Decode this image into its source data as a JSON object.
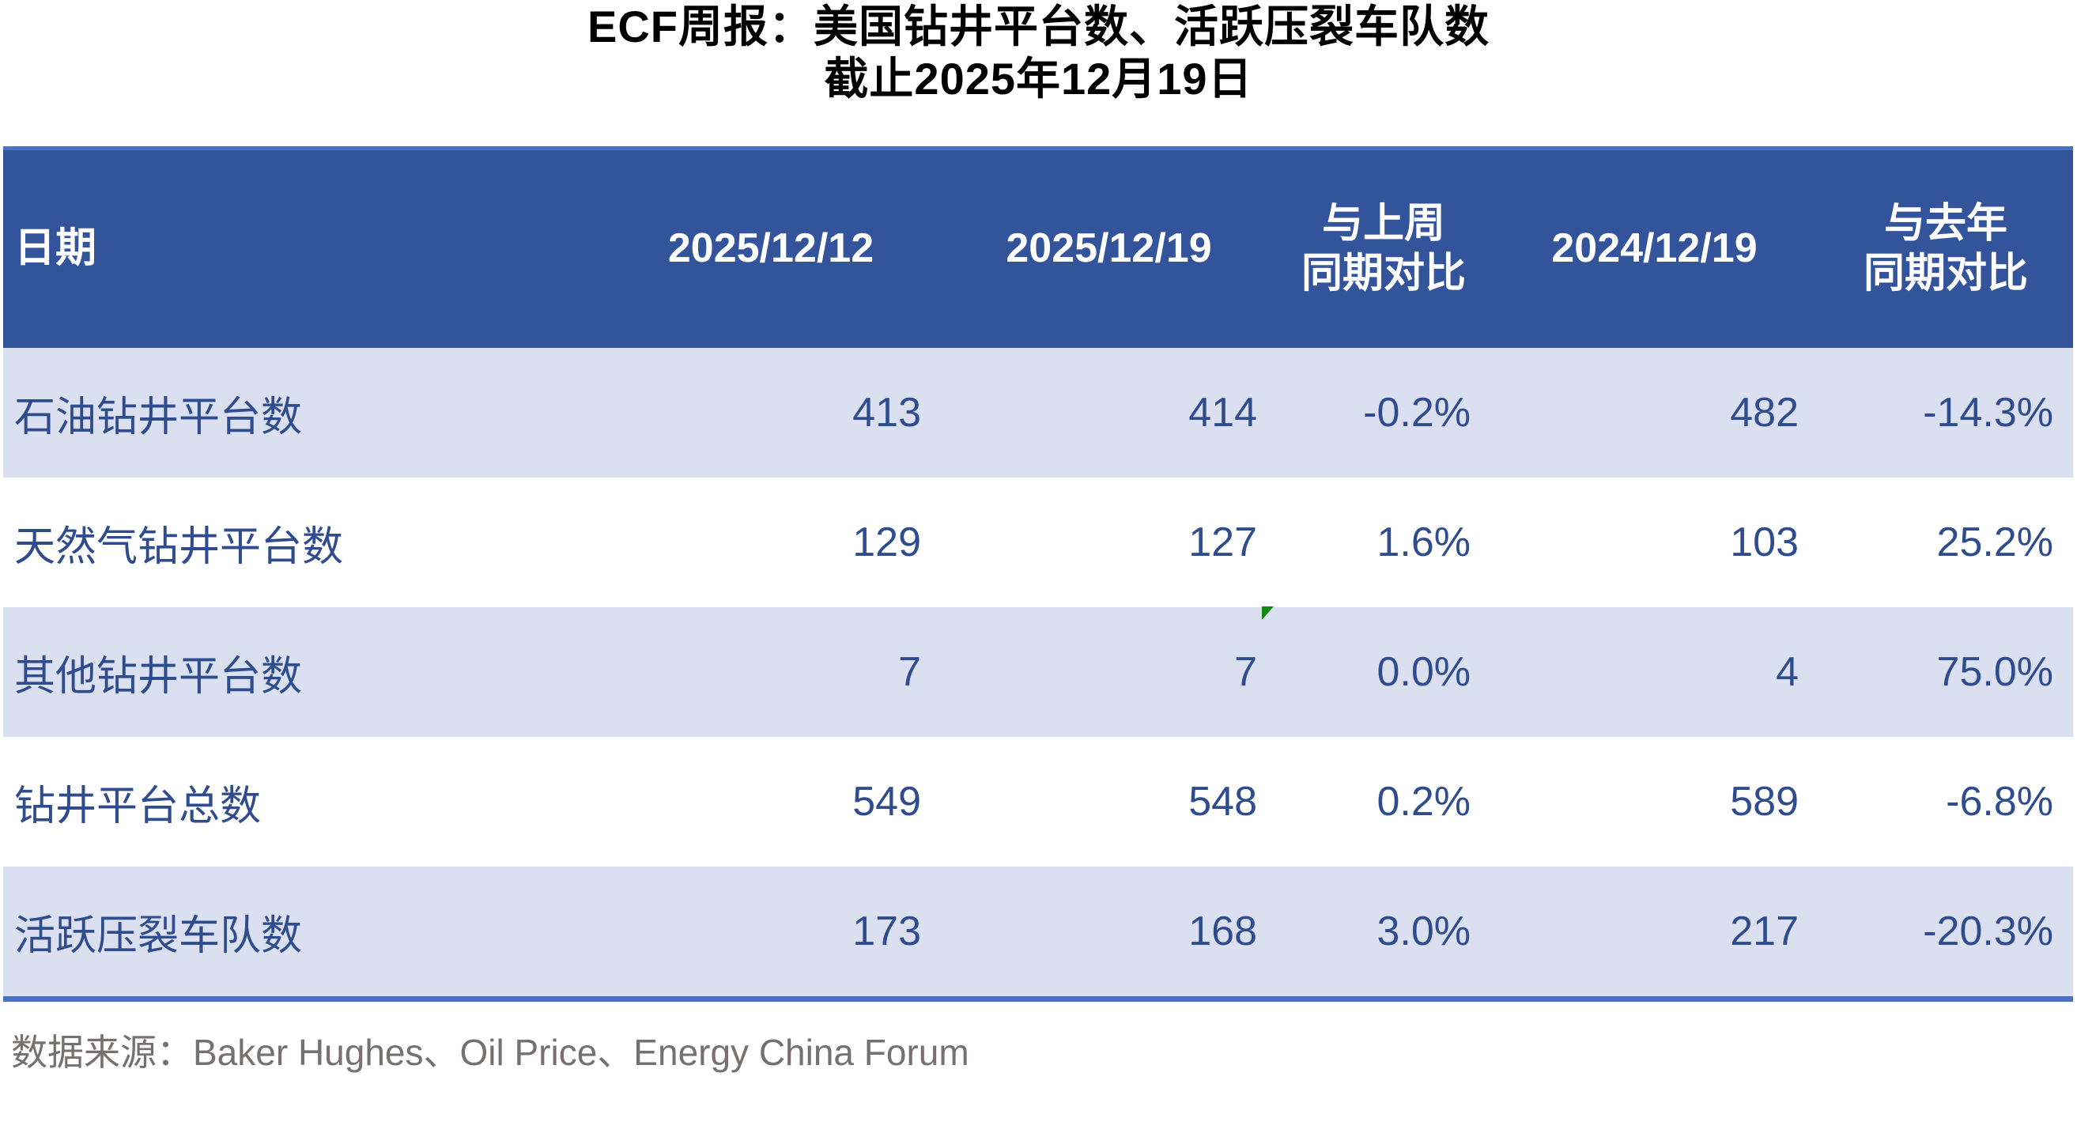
{
  "title": {
    "line1": "ECF周报：美国钻井平台数、活跃压裂车队数",
    "line2": "截止2025年12月19日"
  },
  "table": {
    "header": {
      "date_label": "日期",
      "prev_week": "2025/12/12",
      "curr_week": "2025/12/19",
      "wow_line1": "与上周",
      "wow_line2": "同期对比",
      "prev_year": "2024/12/19",
      "yoy_line1": "与去年",
      "yoy_line2": "同期对比"
    },
    "rows": [
      {
        "cells": [
          "石油钻井平台数",
          "413",
          "414",
          "-0.2%",
          "482",
          "-14.3%"
        ]
      },
      {
        "cells": [
          "天然气钻井平台数",
          "129",
          "127",
          "1.6%",
          "103",
          "25.2%"
        ]
      },
      {
        "cells": [
          "其他钻井平台数",
          "7",
          "7",
          "0.0%",
          "4",
          "75.0%"
        ]
      },
      {
        "cells": [
          "钻井平台总数",
          "549",
          "548",
          "0.2%",
          "589",
          "-6.8%"
        ]
      },
      {
        "cells": [
          "活跃压裂车队数",
          "173",
          "168",
          "3.0%",
          "217",
          "-20.3%"
        ]
      }
    ],
    "marker": {
      "icon": "green-corner-flag-icon",
      "row": "其他钻井平台数",
      "column": "与上周同期对比"
    }
  },
  "footer": {
    "source": "数据来源：Baker Hughes、Oil Price、Energy China Forum"
  },
  "colors": {
    "header_bg": "#33539B",
    "header_text": "#FFFFFF",
    "row_bg": "#FFFFFF",
    "row_alt_bg": "#DAE0F0",
    "cell_text": "#2F4C8E",
    "table_border": "#4A72BE",
    "title_text": "#000000",
    "footer_text": "#767171",
    "marker_green": "#128A12"
  },
  "chart_data": {
    "type": "table",
    "title": "ECF周报：美国钻井平台数、活跃压裂车队数",
    "subtitle": "截止2025年12月19日",
    "columns": [
      "日期",
      "2025/12/12",
      "2025/12/19",
      "与上周同期对比",
      "2024/12/19",
      "与去年同期对比"
    ],
    "rows": [
      [
        "石油钻井平台数",
        413,
        414,
        "-0.2%",
        482,
        "-14.3%"
      ],
      [
        "天然气钻井平台数",
        129,
        127,
        "1.6%",
        103,
        "25.2%"
      ],
      [
        "其他钻井平台数",
        7,
        7,
        "0.0%",
        4,
        "75.0%"
      ],
      [
        "钻井平台总数",
        549,
        548,
        "0.2%",
        589,
        "-6.8%"
      ],
      [
        "活跃压裂车队数",
        173,
        168,
        "3.0%",
        217,
        "-20.3%"
      ]
    ],
    "source": "数据来源：Baker Hughes、Oil Price、Energy China Forum"
  }
}
